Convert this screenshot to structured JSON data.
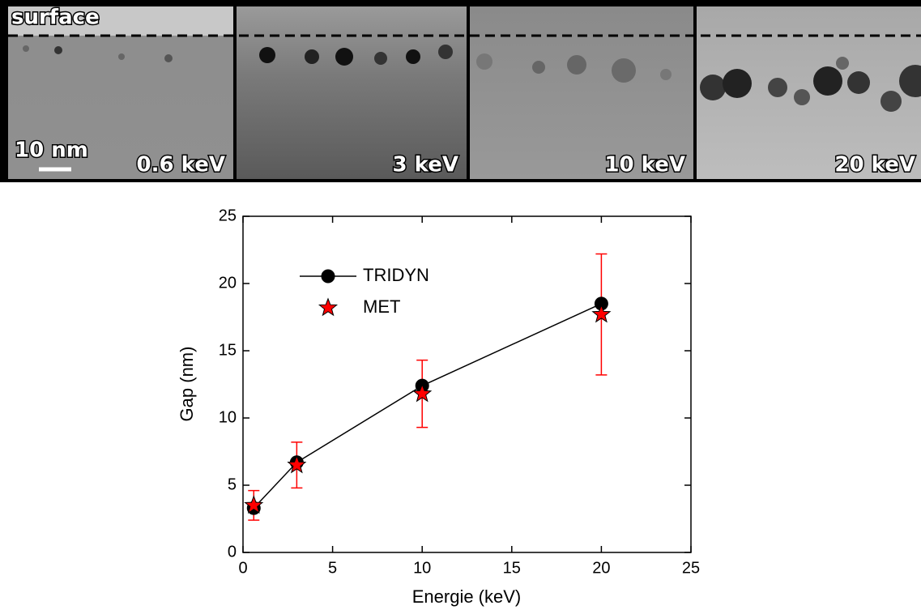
{
  "image_strip": {
    "surface_label": "surface",
    "scale_bar_label": "10 nm",
    "panels": [
      "0.6 keV",
      "3 keV",
      "10 keV",
      "20 keV"
    ]
  },
  "chart_data": {
    "type": "scatter",
    "x_label": "Energie (keV)",
    "y_label": "Gap (nm)",
    "xlim": [
      0,
      25
    ],
    "xticks": [
      0,
      5,
      10,
      15,
      20,
      25
    ],
    "ylim": [
      0,
      25
    ],
    "yticks": [
      0,
      5,
      10,
      15,
      20,
      25
    ],
    "series": [
      {
        "name": "TRIDYN",
        "color": "#000000",
        "x": [
          0.6,
          3,
          10,
          20
        ],
        "values": [
          3.3,
          6.7,
          12.4,
          18.5
        ],
        "line": true,
        "marker": "circle"
      },
      {
        "name": "MET",
        "color": "#ff0000",
        "x": [
          0.6,
          3,
          10,
          20
        ],
        "values": [
          3.5,
          6.5,
          11.8,
          17.7
        ],
        "errors": [
          1.1,
          1.7,
          2.5,
          4.5
        ],
        "marker": "star"
      }
    ]
  }
}
